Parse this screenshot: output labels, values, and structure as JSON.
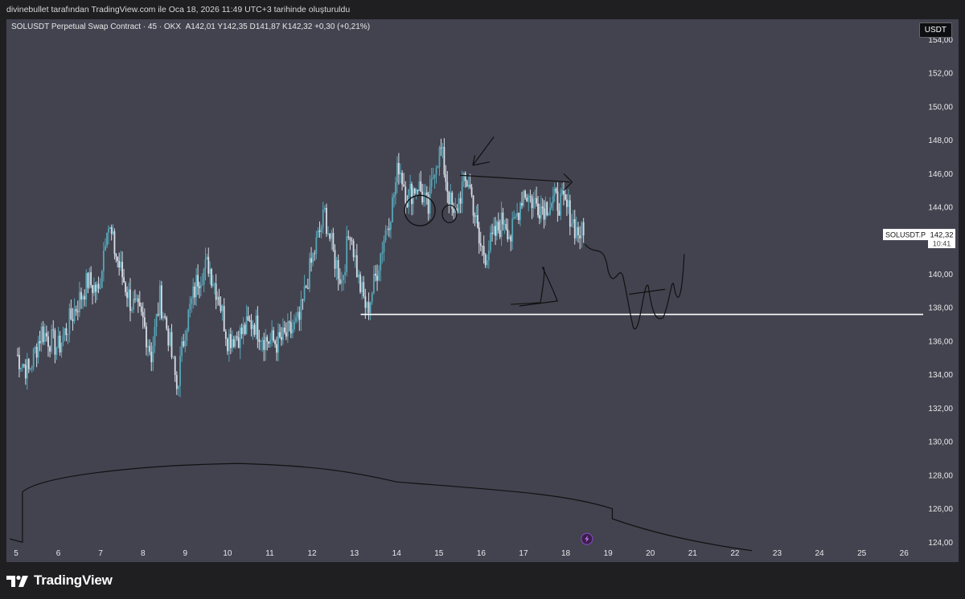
{
  "header": {
    "credit": "divinebullet tarafından TradingView.com ile Oca 18, 2026 11:49 UTC+3 tarihinde oluşturuldu"
  },
  "chart_data": {
    "type": "candlestick",
    "title": "SOLUSDT Perpetual Swap Contract · 45 · OKX",
    "ohlc_label": "A142,01  Y142,35  D141,87  K142,32  +0,30 (+0,21%)",
    "currency": "USDT",
    "price_badge": {
      "symbol": "SOLUSDT.P",
      "price": "142,32",
      "countdown": "10:41"
    },
    "y_ticks": [
      "154,00",
      "152,00",
      "150,00",
      "148,00",
      "146,00",
      "144,00",
      "142,00",
      "140,00",
      "138,00",
      "136,00",
      "134,00",
      "132,00",
      "130,00",
      "128,00",
      "126,00",
      "124,00"
    ],
    "y_values": [
      154,
      152,
      150,
      148,
      146,
      144,
      142,
      140,
      138,
      136,
      134,
      132,
      130,
      128,
      126,
      124
    ],
    "ylim": [
      123.2,
      155.6
    ],
    "x_ticks": [
      "5",
      "6",
      "7",
      "8",
      "9",
      "10",
      "11",
      "12",
      "13",
      "14",
      "15",
      "16",
      "17",
      "18",
      "19",
      "20",
      "21",
      "22",
      "23",
      "24",
      "25",
      "26"
    ],
    "xlim": [
      5,
      26.3
    ],
    "last_price": 142.32,
    "support_level": 137.6,
    "price_path": [
      [
        5.0,
        135.2
      ],
      [
        5.3,
        134.2
      ],
      [
        5.6,
        136.6
      ],
      [
        6.0,
        135.6
      ],
      [
        6.3,
        137.4
      ],
      [
        6.7,
        139.6
      ],
      [
        6.95,
        138.9
      ],
      [
        7.15,
        143.2
      ],
      [
        7.4,
        140.8
      ],
      [
        7.7,
        138.4
      ],
      [
        8.0,
        137.2
      ],
      [
        8.2,
        135.2
      ],
      [
        8.4,
        138.6
      ],
      [
        8.6,
        136.4
      ],
      [
        8.8,
        133.2
      ],
      [
        9.0,
        136.8
      ],
      [
        9.3,
        139.8
      ],
      [
        9.55,
        140.6
      ],
      [
        9.8,
        138.6
      ],
      [
        10.0,
        136.2
      ],
      [
        10.3,
        136.4
      ],
      [
        10.6,
        137.2
      ],
      [
        10.9,
        136.1
      ],
      [
        11.2,
        135.9
      ],
      [
        11.5,
        136.6
      ],
      [
        11.7,
        137.2
      ],
      [
        11.9,
        139.8
      ],
      [
        12.1,
        141.8
      ],
      [
        12.3,
        143.6
      ],
      [
        12.5,
        141.2
      ],
      [
        12.7,
        139.6
      ],
      [
        12.9,
        142.8
      ],
      [
        13.1,
        139.6
      ],
      [
        13.3,
        137.8
      ],
      [
        13.5,
        139.8
      ],
      [
        13.7,
        142.2
      ],
      [
        13.9,
        144.2
      ],
      [
        14.05,
        146.6
      ],
      [
        14.25,
        144.6
      ],
      [
        14.5,
        145.4
      ],
      [
        14.75,
        143.8
      ],
      [
        14.9,
        146.6
      ],
      [
        15.05,
        147.4
      ],
      [
        15.2,
        145.2
      ],
      [
        15.35,
        143.2
      ],
      [
        15.55,
        145.2
      ],
      [
        15.7,
        145.6
      ],
      [
        15.85,
        143.6
      ],
      [
        15.95,
        141.8
      ],
      [
        16.1,
        141.2
      ],
      [
        16.3,
        142.2
      ],
      [
        16.55,
        143.4
      ],
      [
        16.7,
        142.2
      ],
      [
        16.85,
        143.6
      ],
      [
        17.0,
        145.0
      ],
      [
        17.2,
        144.4
      ],
      [
        17.45,
        144.0
      ],
      [
        17.7,
        144.4
      ],
      [
        17.95,
        144.2
      ],
      [
        18.1,
        143.6
      ],
      [
        18.25,
        142.6
      ],
      [
        18.42,
        142.32
      ]
    ],
    "drawn_annotations": [
      {
        "type": "support-line"
      },
      {
        "type": "arrow-right-top"
      },
      {
        "type": "arrow-down-left"
      },
      {
        "type": "circles"
      },
      {
        "type": "triangle"
      },
      {
        "type": "projected-path"
      },
      {
        "type": "volume-profile-curve"
      }
    ]
  },
  "colors": {
    "background": "#42434f",
    "candle_up": "#57a6b8",
    "candle_down": "#d7dde6",
    "annotation": "#111111",
    "support": "#ffffff"
  },
  "footer": {
    "brand": "TradingView",
    "logo": "tradingview-logo-icon"
  }
}
